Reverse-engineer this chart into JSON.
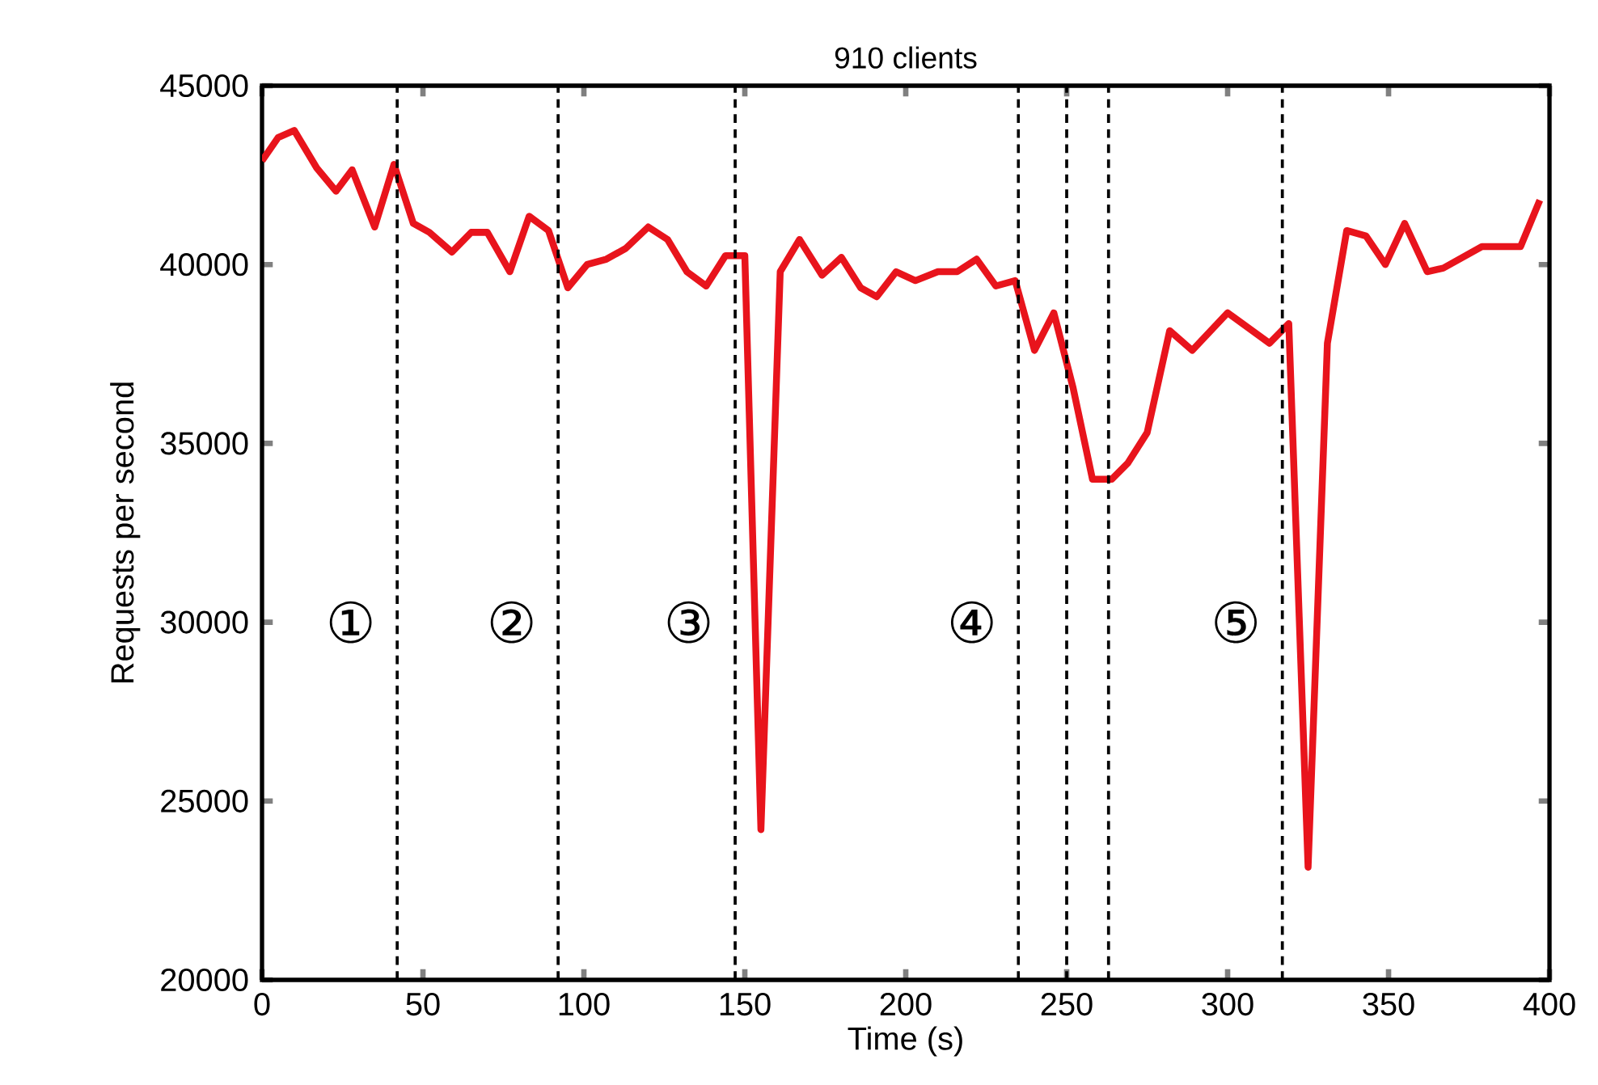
{
  "chart_data": {
    "type": "line",
    "title": "910 clients",
    "xlabel": "Time (s)",
    "ylabel": "Requests per second",
    "x": [
      0,
      5,
      10,
      17,
      23,
      28,
      35,
      41,
      47,
      52,
      59,
      65,
      70,
      77,
      83,
      89,
      95,
      101,
      107,
      113,
      120,
      126,
      132,
      138,
      144,
      150,
      155,
      161,
      167,
      174,
      180,
      186,
      191,
      197,
      203,
      210,
      216,
      222,
      228,
      234,
      240,
      246,
      252,
      258,
      264,
      269,
      275,
      282,
      289,
      300,
      313,
      319,
      325,
      331,
      337,
      343,
      349,
      355,
      362,
      367,
      379,
      391,
      397
    ],
    "series": [
      {
        "color": "#e8141c",
        "values": [
          42900,
          43550,
          43750,
          42700,
          42050,
          42650,
          41050,
          42800,
          41150,
          40900,
          40350,
          40900,
          40900,
          39800,
          41350,
          40950,
          39350,
          40000,
          40150,
          40450,
          41050,
          40700,
          39800,
          39400,
          40250,
          40250,
          24200,
          39800,
          40700,
          39700,
          40200,
          39350,
          39100,
          39800,
          39550,
          39800,
          39800,
          40150,
          39400,
          39550,
          37600,
          38650,
          36550,
          34000,
          34000,
          34450,
          35300,
          38150,
          37600,
          38650,
          37800,
          38350,
          23150,
          37800,
          40950,
          40800,
          40000,
          41150,
          39800,
          39900,
          40500,
          40500,
          41800
        ]
      }
    ],
    "xlim": [
      0,
      400
    ],
    "ylim": [
      20000,
      45000
    ],
    "xticks": [
      0,
      50,
      100,
      150,
      200,
      250,
      300,
      350,
      400
    ],
    "yticks": [
      20000,
      25000,
      30000,
      35000,
      40000,
      45000
    ],
    "grid": false,
    "marker": "none",
    "line_style": "solid",
    "ref_lines": [
      {
        "axis": "x",
        "value": 42,
        "line_style": "dashed"
      },
      {
        "axis": "x",
        "value": 92,
        "line_style": "dashed"
      },
      {
        "axis": "x",
        "value": 147,
        "line_style": "dashed"
      },
      {
        "axis": "x",
        "value": 235,
        "line_style": "dashed"
      },
      {
        "axis": "x",
        "value": 250,
        "line_style": "dashed"
      },
      {
        "axis": "x",
        "value": 263,
        "line_style": "dashed"
      },
      {
        "axis": "x",
        "value": 317,
        "line_style": "dashed"
      }
    ],
    "annotations": [
      "①",
      "②",
      "③",
      "④",
      "⑤"
    ]
  }
}
